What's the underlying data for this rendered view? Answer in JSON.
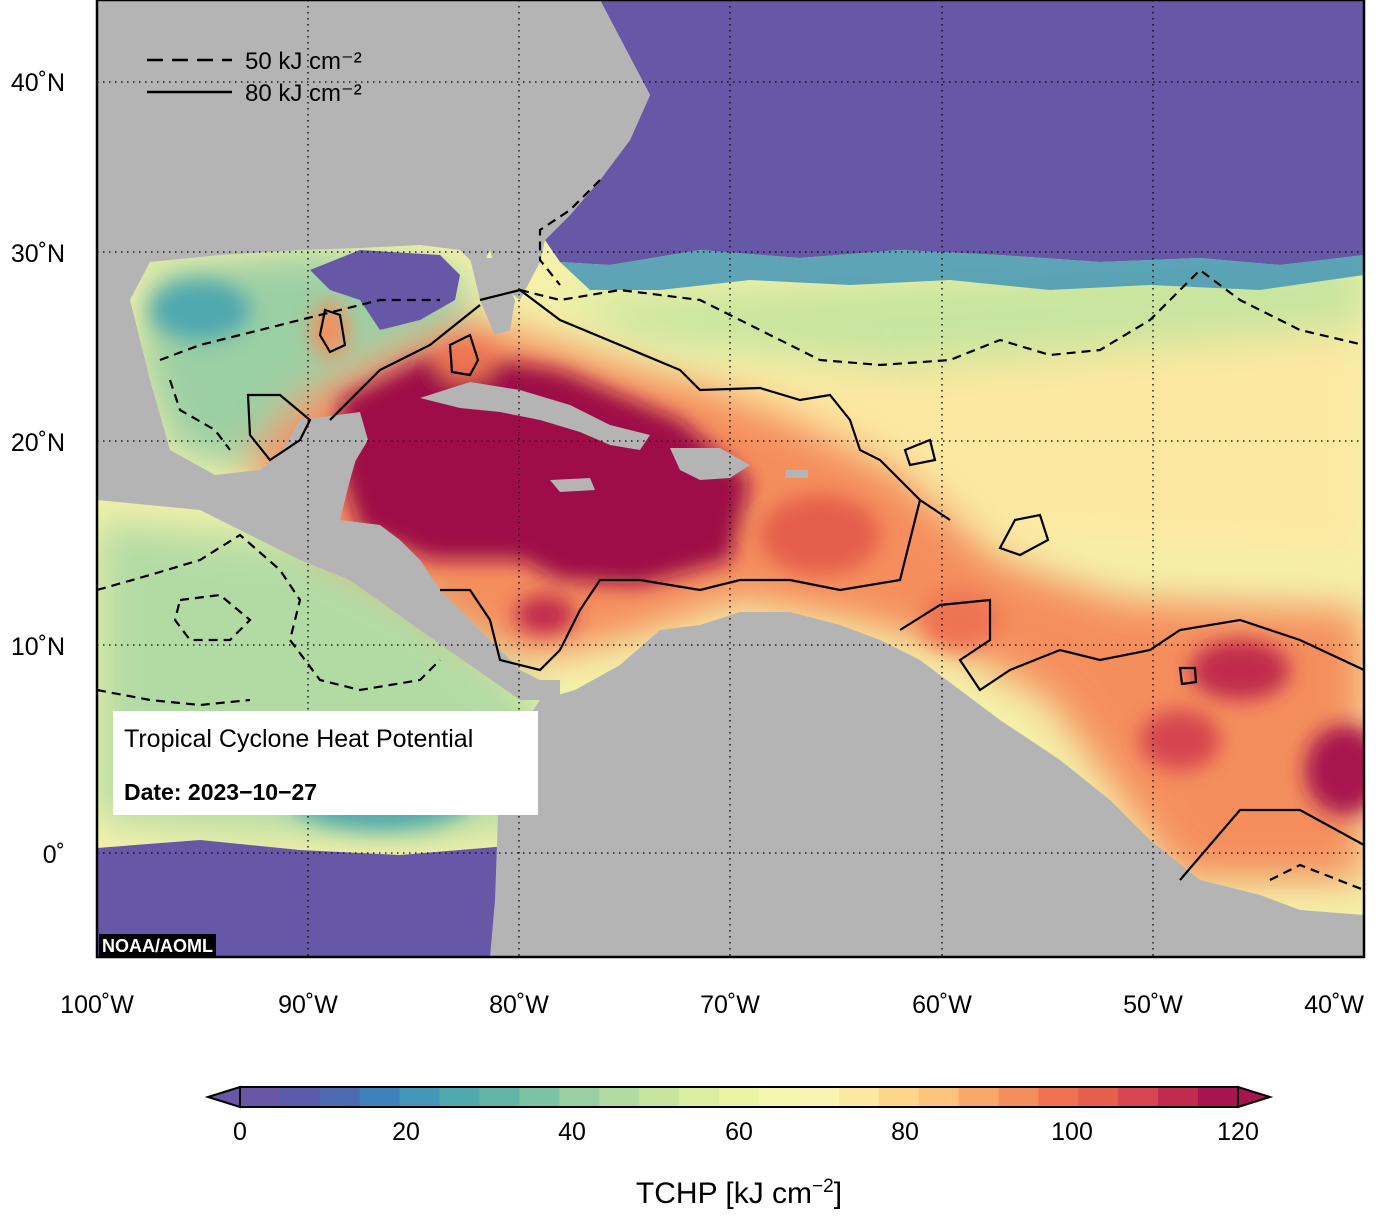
{
  "map": {
    "legend": [
      {
        "style": "dashed",
        "label": "50 kJ cm⁻²"
      },
      {
        "style": "solid",
        "label": "80 kJ cm⁻²"
      }
    ],
    "lat_ticks": [
      "40˚N",
      "30˚N",
      "20˚N",
      "10˚N",
      "0˚"
    ],
    "lon_ticks": [
      "100˚W",
      "90˚W",
      "80˚W",
      "70˚W",
      "60˚W",
      "50˚W",
      "40˚W"
    ],
    "extent": {
      "lon": [
        -100,
        -40
      ],
      "lat": [
        -5,
        45
      ]
    },
    "info_title": "Tropical Cyclone Heat Potential",
    "info_date": "Date: 2023−10−27",
    "credit": "NOAA/AOML",
    "land_color": "#b4b4b4",
    "ocean_cold_color": "#6658a6",
    "ocean_hot_color": "#9e0e47"
  },
  "colorbar": {
    "ticks": [
      "0",
      "20",
      "40",
      "60",
      "80",
      "100",
      "120"
    ],
    "title_prefix": "TCHP [kJ cm",
    "title_exp": "−2",
    "title_suffix": "]",
    "range": [
      0,
      120
    ],
    "step": 5,
    "colors": [
      "#6a56a6",
      "#5c5aab",
      "#4c6ab0",
      "#3d82ba",
      "#4497b9",
      "#4fa9ae",
      "#63b5a6",
      "#7cc2a4",
      "#99cfa3",
      "#b2dba4",
      "#c8e59f",
      "#dcee9f",
      "#ebf3a4",
      "#f4f6ad",
      "#f9f4b2",
      "#fde8a1",
      "#fdd68b",
      "#fcc37a",
      "#f9a86a",
      "#f58e5d",
      "#ef7353",
      "#e55f4c",
      "#d64550",
      "#c12b4e",
      "#a81450"
    ]
  }
}
